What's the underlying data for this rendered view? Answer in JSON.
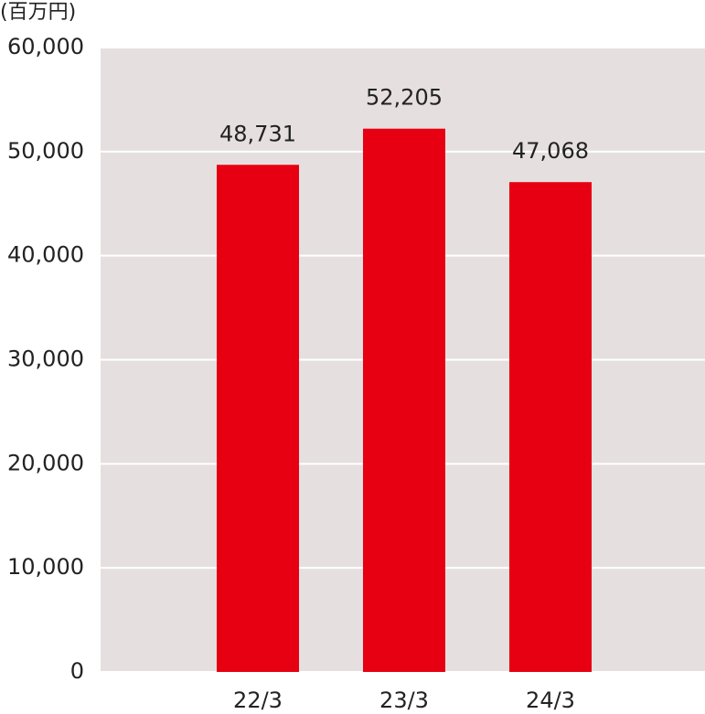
{
  "chart_data": {
    "type": "bar",
    "unit_label": "(百万円)",
    "categories": [
      "22/3",
      "23/3",
      "24/3"
    ],
    "values": [
      48731,
      52205,
      47068
    ],
    "value_labels": [
      "48,731",
      "52,205",
      "47,068"
    ],
    "color": "#e60012",
    "ylim": [
      0,
      60000
    ],
    "yticks": [
      0,
      {
        "value": 10000,
        "label": "10,000"
      },
      {
        "value": 20000,
        "label": "20,000"
      },
      {
        "value": 30000,
        "label": "30,000"
      },
      {
        "value": 40000,
        "label": "40,000"
      },
      {
        "value": 50000,
        "label": "50,000"
      },
      {
        "value": 60000,
        "label": "60,000"
      }
    ],
    "grid": true
  }
}
